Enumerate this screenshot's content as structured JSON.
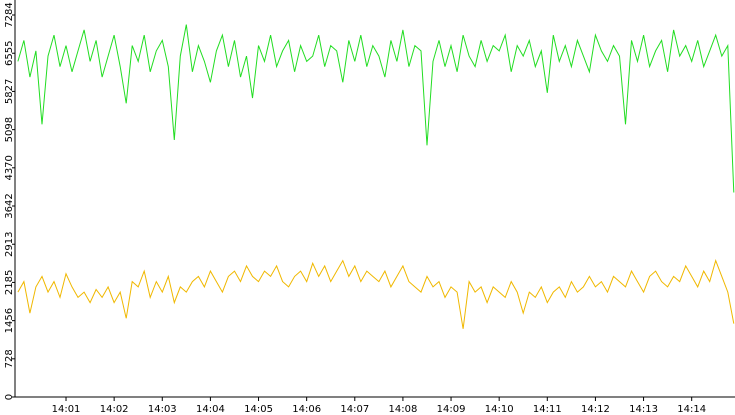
{
  "chart_data": {
    "type": "line",
    "x": [
      0,
      0.125,
      0.25,
      0.375,
      0.5,
      0.625,
      0.75,
      0.875,
      1,
      1.125,
      1.25,
      1.375,
      1.5,
      1.625,
      1.75,
      1.875,
      2,
      2.125,
      2.25,
      2.375,
      2.5,
      2.625,
      2.75,
      2.875,
      3,
      3.125,
      3.25,
      3.375,
      3.5,
      3.625,
      3.75,
      3.875,
      4,
      4.125,
      4.25,
      4.375,
      4.5,
      4.625,
      4.75,
      4.875,
      5,
      5.125,
      5.25,
      5.375,
      5.5,
      5.625,
      5.75,
      5.875,
      6,
      6.125,
      6.25,
      6.375,
      6.5,
      6.625,
      6.75,
      6.875,
      7,
      7.125,
      7.25,
      7.375,
      7.5,
      7.625,
      7.75,
      7.875,
      8,
      8.125,
      8.25,
      8.375,
      8.5,
      8.625,
      8.75,
      8.875,
      9,
      9.125,
      9.25,
      9.375,
      9.5,
      9.625,
      9.75,
      9.875,
      10,
      10.125,
      10.25,
      10.375,
      10.5,
      10.625,
      10.75,
      10.875,
      11,
      11.125,
      11.25,
      11.375,
      11.5,
      11.625,
      11.75,
      11.875,
      12,
      12.125,
      12.25,
      12.375,
      12.5,
      12.625,
      12.75,
      12.875,
      13,
      13.125,
      13.25,
      13.375,
      13.5,
      13.625,
      13.75,
      13.875,
      14,
      14.125,
      14.25,
      14.375,
      14.5,
      14.625,
      14.75,
      14.875
    ],
    "series": [
      {
        "color": "#22dd22",
        "values": [
          6400,
          6800,
          6100,
          6600,
          5200,
          6500,
          6900,
          6300,
          6700,
          6200,
          6600,
          7000,
          6400,
          6800,
          6100,
          6500,
          6900,
          6300,
          5600,
          6700,
          6400,
          6900,
          6200,
          6600,
          6800,
          6300,
          4900,
          6500,
          7100,
          6200,
          6700,
          6400,
          6000,
          6600,
          6900,
          6300,
          6800,
          6100,
          6500,
          5700,
          6700,
          6400,
          6900,
          6300,
          6600,
          6800,
          6200,
          6700,
          6400,
          6500,
          6900,
          6300,
          6700,
          6600,
          6000,
          6800,
          6400,
          6900,
          6300,
          6700,
          6500,
          6100,
          6800,
          6400,
          7000,
          6300,
          6700,
          6600,
          4800,
          6400,
          6800,
          6300,
          6700,
          6200,
          6900,
          6500,
          6300,
          6800,
          6400,
          6700,
          6600,
          6900,
          6200,
          6700,
          6500,
          6800,
          6300,
          6600,
          5800,
          6900,
          6400,
          6700,
          6300,
          6800,
          6500,
          6200,
          6900,
          6600,
          6400,
          6700,
          6500,
          5200,
          6800,
          6400,
          6900,
          6300,
          6600,
          6800,
          6200,
          7000,
          6500,
          6700,
          6400,
          6800,
          6300,
          6600,
          6900,
          6500,
          6700,
          3900
        ]
      },
      {
        "color": "#f0b800",
        "values": [
          2000,
          2200,
          1600,
          2100,
          2300,
          2000,
          2200,
          1900,
          2350,
          2100,
          1900,
          2000,
          1800,
          2050,
          1900,
          2100,
          1800,
          2000,
          1500,
          2200,
          2100,
          2400,
          1900,
          2200,
          2000,
          2300,
          1800,
          2100,
          2000,
          2200,
          2300,
          2100,
          2400,
          2200,
          2000,
          2300,
          2400,
          2200,
          2500,
          2300,
          2200,
          2400,
          2300,
          2500,
          2200,
          2100,
          2300,
          2400,
          2200,
          2550,
          2300,
          2500,
          2200,
          2400,
          2600,
          2300,
          2500,
          2200,
          2400,
          2300,
          2200,
          2400,
          2100,
          2300,
          2500,
          2200,
          2100,
          2000,
          2300,
          2100,
          2200,
          1900,
          2100,
          2000,
          1300,
          2200,
          2000,
          2100,
          1800,
          2100,
          2000,
          1900,
          2200,
          2000,
          1600,
          2000,
          1900,
          2100,
          1800,
          2000,
          2100,
          1900,
          2200,
          2000,
          2100,
          2300,
          2100,
          2200,
          2000,
          2300,
          2200,
          2100,
          2400,
          2200,
          2000,
          2300,
          2400,
          2200,
          2100,
          2300,
          2200,
          2500,
          2300,
          2100,
          2400,
          2200,
          2600,
          2300,
          2000,
          1400
        ]
      }
    ],
    "xlim": [
      -0.06,
      14.9
    ],
    "xticks": [
      {
        "value": 1,
        "label": "14:01"
      },
      {
        "value": 2,
        "label": "14:02"
      },
      {
        "value": 3,
        "label": "14:03"
      },
      {
        "value": 4,
        "label": "14:04"
      },
      {
        "value": 5,
        "label": "14:05"
      },
      {
        "value": 6,
        "label": "14:06"
      },
      {
        "value": 7,
        "label": "14:07"
      },
      {
        "value": 8,
        "label": "14:08"
      },
      {
        "value": 9,
        "label": "14:09"
      },
      {
        "value": 10,
        "label": "14:10"
      },
      {
        "value": 11,
        "label": "14:11"
      },
      {
        "value": 12,
        "label": "14:12"
      },
      {
        "value": 13,
        "label": "14:13"
      },
      {
        "value": 14,
        "label": "14:14"
      }
    ],
    "ylim": [
      0,
      7570
    ],
    "yticks": [
      0,
      728,
      1456,
      2185,
      2913,
      3642,
      4370,
      5098,
      5827,
      6555,
      7284
    ]
  }
}
